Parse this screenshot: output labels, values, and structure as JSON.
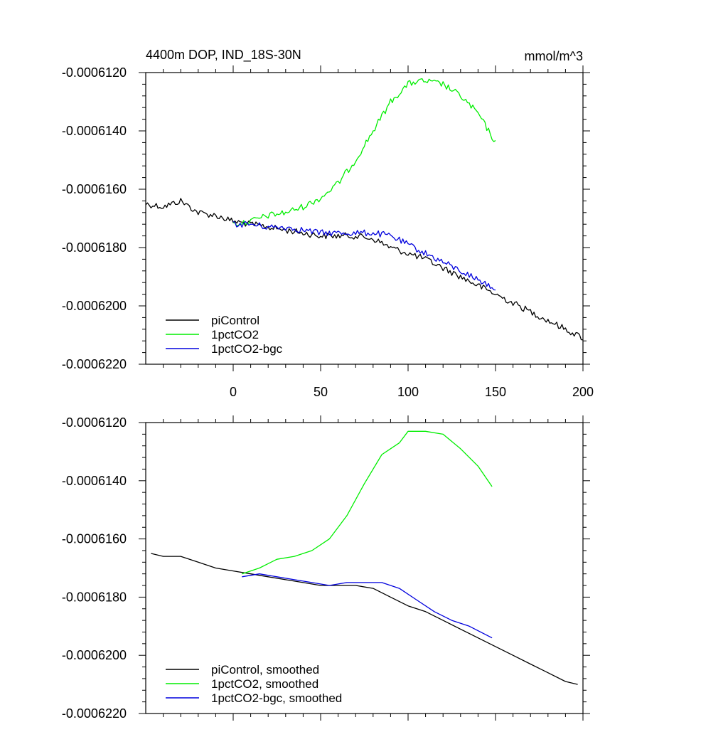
{
  "colors": {
    "piControl": "#000000",
    "1pctCO2": "#00ee00",
    "1pctCO2-bgc": "#0000dd"
  },
  "chart_data": [
    {
      "type": "line",
      "title": "4400m DOP, IND_18S-30N",
      "units": "mmol/m^3",
      "xlim": [
        -50,
        200
      ],
      "ylim": [
        -0.000622,
        -0.000612
      ],
      "x_ticks": [
        0,
        50,
        100,
        150,
        200
      ],
      "x_tick_labels": [
        "0",
        "50",
        "100",
        "150",
        "200"
      ],
      "y_ticks": [
        -0.000612,
        -0.000614,
        -0.000616,
        -0.000618,
        -0.00062,
        -0.000622
      ],
      "y_tick_labels": [
        "-0.0006120",
        "-0.0006140",
        "-0.0006160",
        "-0.0006180",
        "-0.0006200",
        "-0.0006220"
      ],
      "legend_position": "bottom-left",
      "noisy": true,
      "series": [
        {
          "name": "piControl",
          "label": "piControl",
          "color_key": "piControl",
          "x": [
            -50,
            -40,
            -30,
            -20,
            -10,
            0,
            10,
            20,
            30,
            40,
            50,
            60,
            70,
            80,
            90,
            100,
            110,
            120,
            130,
            140,
            150,
            160,
            170,
            180,
            190,
            200
          ],
          "y": [
            -0.0006165,
            -0.0006166,
            -0.0006164,
            -0.0006168,
            -0.0006169,
            -0.0006171,
            -0.0006172,
            -0.0006173,
            -0.0006174,
            -0.0006175,
            -0.0006176,
            -0.0006176,
            -0.0006176,
            -0.0006177,
            -0.000618,
            -0.0006182,
            -0.0006184,
            -0.0006187,
            -0.000619,
            -0.0006193,
            -0.0006196,
            -0.0006199,
            -0.0006202,
            -0.0006205,
            -0.0006208,
            -0.0006211
          ]
        },
        {
          "name": "1pctCO2",
          "label": "1pctCO2",
          "color_key": "1pctCO2",
          "x": [
            0,
            10,
            20,
            30,
            40,
            50,
            60,
            70,
            80,
            90,
            100,
            105,
            110,
            120,
            130,
            140,
            150
          ],
          "y": [
            -0.0006172,
            -0.0006171,
            -0.0006169,
            -0.0006168,
            -0.0006166,
            -0.0006163,
            -0.0006158,
            -0.000615,
            -0.000614,
            -0.000613,
            -0.0006124,
            -0.0006123,
            -0.0006123,
            -0.0006124,
            -0.0006128,
            -0.0006134,
            -0.0006144
          ]
        },
        {
          "name": "1pctCO2-bgc",
          "label": "1pctCO2-bgc",
          "color_key": "1pctCO2-bgc",
          "x": [
            0,
            10,
            20,
            30,
            40,
            50,
            60,
            70,
            80,
            90,
            100,
            110,
            120,
            130,
            140,
            150
          ],
          "y": [
            -0.0006172,
            -0.0006172,
            -0.0006173,
            -0.0006173,
            -0.0006174,
            -0.0006175,
            -0.0006175,
            -0.0006175,
            -0.0006175,
            -0.0006176,
            -0.0006179,
            -0.0006182,
            -0.0006185,
            -0.0006188,
            -0.0006191,
            -0.0006194
          ]
        }
      ]
    },
    {
      "type": "line",
      "xlim": [
        -50,
        200
      ],
      "ylim": [
        -0.000622,
        -0.000612
      ],
      "x_ticks": [
        0,
        50,
        100,
        150,
        200
      ],
      "y_ticks": [
        -0.000612,
        -0.000614,
        -0.000616,
        -0.000618,
        -0.00062,
        -0.000622
      ],
      "y_tick_labels": [
        "-0.0006120",
        "-0.0006140",
        "-0.0006160",
        "-0.0006180",
        "-0.0006200",
        "-0.0006220"
      ],
      "legend_position": "bottom-left",
      "noisy": false,
      "series": [
        {
          "name": "piControl, smoothed",
          "label": "piControl, smoothed",
          "color_key": "piControl",
          "x": [
            -47,
            -40,
            -30,
            -20,
            -10,
            0,
            10,
            20,
            30,
            40,
            50,
            60,
            70,
            80,
            90,
            100,
            110,
            120,
            130,
            140,
            150,
            160,
            170,
            180,
            190,
            197
          ],
          "y": [
            -0.0006165,
            -0.0006166,
            -0.0006166,
            -0.0006168,
            -0.000617,
            -0.0006171,
            -0.0006172,
            -0.0006173,
            -0.0006174,
            -0.0006175,
            -0.0006176,
            -0.0006176,
            -0.0006176,
            -0.0006177,
            -0.000618,
            -0.0006183,
            -0.0006185,
            -0.0006188,
            -0.0006191,
            -0.0006194,
            -0.0006197,
            -0.00062,
            -0.0006203,
            -0.0006206,
            -0.0006209,
            -0.000621
          ]
        },
        {
          "name": "1pctCO2, smoothed",
          "label": "1pctCO2, smoothed",
          "color_key": "1pctCO2",
          "x": [
            5,
            15,
            25,
            35,
            45,
            55,
            65,
            75,
            85,
            95,
            100,
            105,
            110,
            120,
            130,
            140,
            148
          ],
          "y": [
            -0.0006172,
            -0.000617,
            -0.0006167,
            -0.0006166,
            -0.0006164,
            -0.000616,
            -0.0006152,
            -0.0006141,
            -0.0006131,
            -0.0006127,
            -0.0006123,
            -0.0006123,
            -0.0006123,
            -0.0006124,
            -0.0006129,
            -0.0006135,
            -0.0006142
          ]
        },
        {
          "name": "1pctCO2-bgc, smoothed",
          "label": "1pctCO2-bgc, smoothed",
          "color_key": "1pctCO2-bgc",
          "x": [
            5,
            15,
            25,
            35,
            45,
            55,
            65,
            75,
            85,
            95,
            105,
            115,
            125,
            135,
            148
          ],
          "y": [
            -0.0006173,
            -0.0006172,
            -0.0006173,
            -0.0006174,
            -0.0006175,
            -0.0006176,
            -0.0006175,
            -0.0006175,
            -0.0006175,
            -0.0006177,
            -0.0006181,
            -0.0006185,
            -0.0006188,
            -0.000619,
            -0.0006194
          ]
        }
      ]
    }
  ]
}
